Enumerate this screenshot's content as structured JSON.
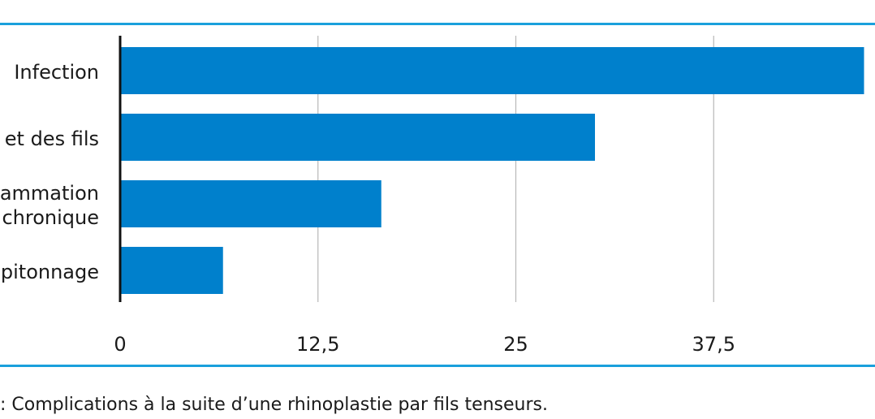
{
  "colors": {
    "bar": "#0080cc",
    "rule": "#1aa0dc",
    "grid": "#b8b8b8",
    "axis": "#111111"
  },
  "caption": ": Complications à la suite d’une rhinoplastie par fils tenseurs.",
  "chart_data": {
    "type": "bar",
    "orientation": "horizontal",
    "categories": [
      "Infection",
      "et des fils",
      "ammation\nchronique",
      "pitonnage"
    ],
    "values": [
      47,
      30,
      16.5,
      6.5
    ],
    "xticks": [
      "0",
      "12,5",
      "25",
      "37,5"
    ],
    "xtick_values": [
      0,
      12.5,
      25,
      37.5
    ],
    "xlim": [
      0,
      48
    ],
    "grid": "vertical"
  }
}
